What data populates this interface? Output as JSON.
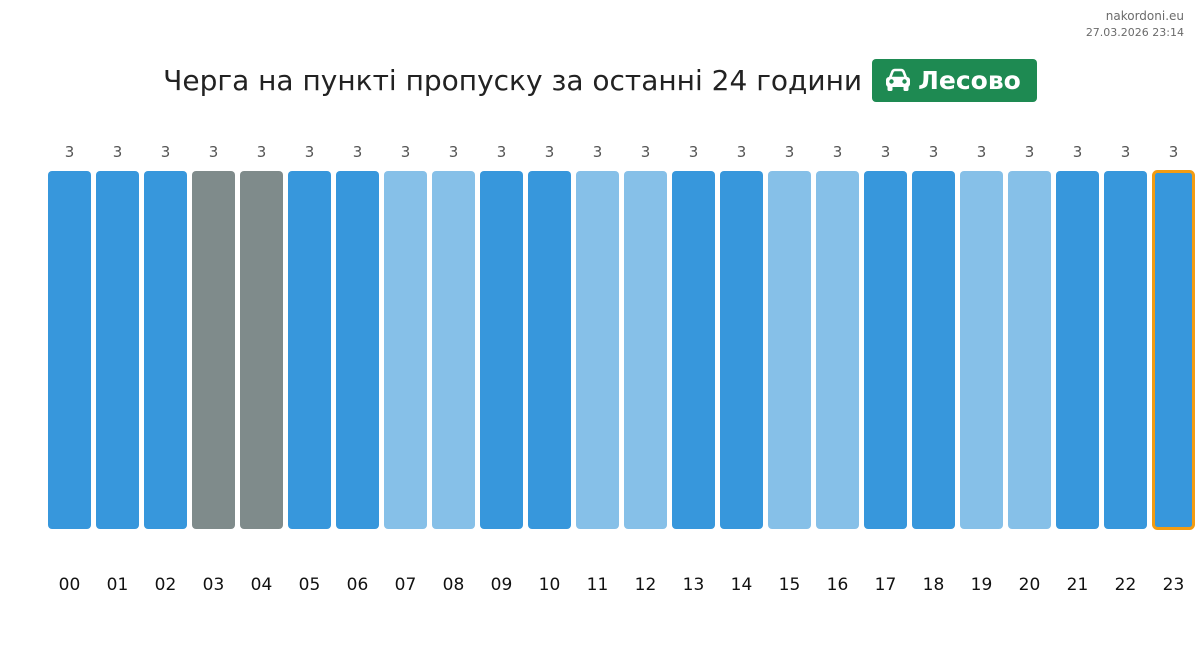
{
  "header": {
    "site": "nakordoni.eu",
    "timestamp": "27.03.2026 23:14",
    "title": "Черга на пункті пропуску за останні 24 години",
    "checkpoint": "Лесово",
    "checkpoint_icon": "car-icon",
    "badge_color": "#1e8a52"
  },
  "colors": {
    "normal": "#3797dc",
    "light": "#86c0e8",
    "gray": "#7f8b8b",
    "highlight_border": "#f39c12"
  },
  "chart_data": {
    "type": "bar",
    "categories": [
      "00",
      "01",
      "02",
      "03",
      "04",
      "05",
      "06",
      "07",
      "08",
      "09",
      "10",
      "11",
      "12",
      "13",
      "14",
      "15",
      "16",
      "17",
      "18",
      "19",
      "20",
      "21",
      "22",
      "23"
    ],
    "values": [
      3,
      3,
      3,
      3,
      3,
      3,
      3,
      3,
      3,
      3,
      3,
      3,
      3,
      3,
      3,
      3,
      3,
      3,
      3,
      3,
      3,
      3,
      3,
      3
    ],
    "shades": [
      "normal",
      "normal",
      "normal",
      "gray",
      "gray",
      "normal",
      "normal",
      "light",
      "light",
      "normal",
      "normal",
      "light",
      "light",
      "normal",
      "normal",
      "light",
      "light",
      "normal",
      "normal",
      "light",
      "light",
      "normal",
      "normal",
      "normal"
    ],
    "highlighted_index": 23,
    "title": "Черга на пункті пропуску за останні 24 години",
    "xlabel": "",
    "ylabel": "",
    "ylim": [
      0,
      3
    ],
    "grid": false,
    "legend": "none"
  }
}
